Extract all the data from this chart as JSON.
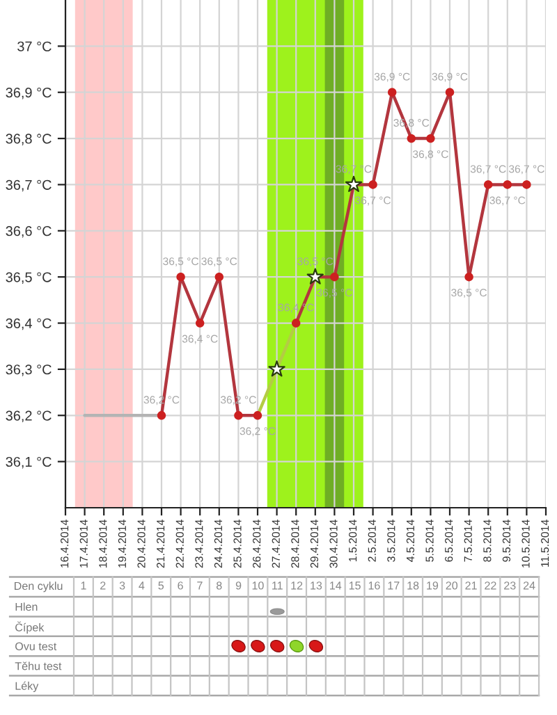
{
  "chart_data": [
    {
      "type": "line",
      "xlim": [
        "2014-04-16",
        "2014-05-11"
      ],
      "xticks": [
        {
          "value": "2014-04-16",
          "label": "16.4.2014"
        },
        {
          "value": "2014-04-17",
          "label": "17.4.2014"
        },
        {
          "value": "2014-04-18",
          "label": "18.4.2014"
        },
        {
          "value": "2014-04-19",
          "label": "19.4.2014"
        },
        {
          "value": "2014-04-20",
          "label": "20.4.2014"
        },
        {
          "value": "2014-04-21",
          "label": "21.4.2014"
        },
        {
          "value": "2014-04-22",
          "label": "22.4.2014"
        },
        {
          "value": "2014-04-23",
          "label": "23.4.2014"
        },
        {
          "value": "2014-04-24",
          "label": "24.4.2014"
        },
        {
          "value": "2014-04-25",
          "label": "25.4.2014"
        },
        {
          "value": "2014-04-26",
          "label": "26.4.2014"
        },
        {
          "value": "2014-04-27",
          "label": "27.4.2014"
        },
        {
          "value": "2014-04-28",
          "label": "28.4.2014"
        },
        {
          "value": "2014-04-29",
          "label": "29.4.2014"
        },
        {
          "value": "2014-04-30",
          "label": "30.4.2014"
        },
        {
          "value": "2014-05-01",
          "label": "1.5.2014"
        },
        {
          "value": "2014-05-02",
          "label": "2.5.2014"
        },
        {
          "value": "2014-05-03",
          "label": "3.5.2014"
        },
        {
          "value": "2014-05-04",
          "label": "4.5.2014"
        },
        {
          "value": "2014-05-05",
          "label": "5.5.2014"
        },
        {
          "value": "2014-05-06",
          "label": "6.5.2014"
        },
        {
          "value": "2014-05-07",
          "label": "7.5.2014"
        },
        {
          "value": "2014-05-08",
          "label": "8.5.2014"
        },
        {
          "value": "2014-05-09",
          "label": "9.5.2014"
        },
        {
          "value": "2014-05-10",
          "label": "10.5.2014"
        },
        {
          "value": "2014-05-11",
          "label": "11.5.2014"
        }
      ],
      "ylim": [
        36.0,
        37.1
      ],
      "yticks": [
        {
          "value": 36.1,
          "label": "36,1 °C"
        },
        {
          "value": 36.2,
          "label": "36,2 °C"
        },
        {
          "value": 36.3,
          "label": "36,3 °C"
        },
        {
          "value": 36.4,
          "label": "36,4 °C"
        },
        {
          "value": 36.5,
          "label": "36,5 °C"
        },
        {
          "value": 36.6,
          "label": "36,6 °C"
        },
        {
          "value": 36.7,
          "label": "36,7 °C"
        },
        {
          "value": 36.8,
          "label": "36,8 °C"
        },
        {
          "value": 36.9,
          "label": "36,9 °C"
        },
        {
          "value": 37.0,
          "label": "37 °C"
        }
      ],
      "grid": true,
      "bands": [
        {
          "axis": "x",
          "from": "2014-04-16T12:00",
          "to": "2014-04-19T12:00",
          "color": "#ffc9c9"
        },
        {
          "axis": "x",
          "from": "2014-04-26T12:00",
          "to": "2014-05-01T12:00",
          "color": "#9ef21c"
        },
        {
          "axis": "x",
          "from": "2014-04-29T12:00",
          "to": "2014-04-30T12:00",
          "color": "#6fae24"
        }
      ],
      "series": [
        {
          "type": "line",
          "color": "#b4b4b4",
          "x": [
            "2014-04-17",
            "2014-04-21"
          ],
          "values": [
            36.2,
            36.2
          ]
        },
        {
          "type": "line",
          "color": "#b3363e",
          "x": [
            "2014-04-21",
            "2014-04-22",
            "2014-04-23",
            "2014-04-24",
            "2014-04-25",
            "2014-04-26"
          ],
          "values": [
            36.2,
            36.5,
            36.4,
            36.5,
            36.2,
            36.2
          ]
        },
        {
          "type": "line",
          "color": "#b4cc44",
          "x": [
            "2014-04-26",
            "2014-04-27",
            "2014-04-28"
          ],
          "values": [
            36.2,
            36.3,
            36.4
          ]
        },
        {
          "type": "line",
          "color": "#b3363e",
          "x": [
            "2014-04-28",
            "2014-04-29",
            "2014-04-30",
            "2014-05-01",
            "2014-05-02",
            "2014-05-03",
            "2014-05-04",
            "2014-05-05",
            "2014-05-06",
            "2014-05-07",
            "2014-05-08",
            "2014-05-09",
            "2014-05-10"
          ],
          "values": [
            36.4,
            36.5,
            36.5,
            36.7,
            36.7,
            36.9,
            36.8,
            36.8,
            36.9,
            36.5,
            36.7,
            36.7,
            36.7
          ]
        },
        {
          "type": "scatter",
          "marker": "circle",
          "color": "#cc2020",
          "x": [
            "2014-04-21",
            "2014-04-22",
            "2014-04-23",
            "2014-04-24",
            "2014-04-25",
            "2014-04-26",
            "2014-04-28",
            "2014-04-30",
            "2014-05-02",
            "2014-05-03",
            "2014-05-04",
            "2014-05-05",
            "2014-05-06",
            "2014-05-07",
            "2014-05-08",
            "2014-05-09",
            "2014-05-10"
          ],
          "values": [
            36.2,
            36.5,
            36.4,
            36.5,
            36.2,
            36.2,
            36.4,
            36.5,
            36.7,
            36.9,
            36.8,
            36.8,
            36.9,
            36.5,
            36.7,
            36.7,
            36.7
          ],
          "value_labels": [
            "36,2 °C",
            "36,5 °C",
            "36,4 °C",
            "36,5 °C",
            "36,2 °C",
            "36,2 °C",
            "36,4 °C",
            "36,5 °C",
            "36,7 °C",
            "36,9 °C",
            "36,8 °C",
            "36,8 °C",
            "36,9 °C",
            "36,5 °C",
            "36,7 °C",
            "36,7 °C",
            "36,7 °C"
          ]
        },
        {
          "type": "scatter",
          "marker": "star",
          "color": "#ffffff",
          "x": [
            "2014-04-27",
            "2014-04-29",
            "2014-05-01"
          ],
          "values": [
            36.3,
            36.5,
            36.7
          ],
          "value_labels": [
            null,
            "36,5 °C",
            "36,7 °C"
          ]
        }
      ]
    },
    {
      "type": "heatmap",
      "xlabel": "Den cyklu",
      "categories": [
        "1",
        "2",
        "3",
        "4",
        "5",
        "6",
        "7",
        "8",
        "9",
        "10",
        "11",
        "12",
        "13",
        "14",
        "15",
        "16",
        "17",
        "18",
        "19",
        "20",
        "21",
        "22",
        "23",
        "24"
      ],
      "y_categories": [
        "Hlen",
        "Čípek",
        "Ovu test",
        "Těhu test",
        "Léky"
      ],
      "cells": [
        [
          null,
          null,
          null,
          null,
          null,
          null,
          null,
          null,
          null,
          null,
          null,
          null,
          null,
          null,
          null,
          null,
          null,
          null,
          null,
          null,
          null,
          null,
          null,
          null
        ],
        [
          null,
          null,
          null,
          null,
          null,
          null,
          null,
          null,
          null,
          null,
          null,
          null,
          null,
          null,
          null,
          null,
          null,
          null,
          null,
          null,
          null,
          null,
          null,
          null
        ],
        [
          null,
          null,
          null,
          null,
          null,
          null,
          null,
          null,
          null,
          null,
          null,
          null,
          null,
          null,
          null,
          null,
          null,
          null,
          null,
          null,
          null,
          null,
          null,
          null
        ],
        [
          null,
          null,
          null,
          null,
          null,
          null,
          null,
          null,
          null,
          null,
          null,
          null,
          null,
          null,
          null,
          null,
          null,
          null,
          null,
          null,
          null,
          null,
          null,
          null
        ],
        [
          null,
          null,
          null,
          null,
          null,
          null,
          null,
          null,
          null,
          null,
          null,
          null,
          null,
          null,
          null,
          null,
          null,
          null,
          null,
          null,
          null,
          null,
          null,
          null
        ]
      ]
    }
  ]
}
